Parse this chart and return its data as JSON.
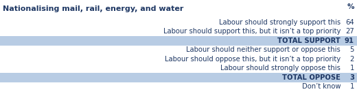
{
  "title": "Nationalising mail, rail, energy, and water",
  "percent_label": "%",
  "rows": [
    {
      "label": "Labour should strongly support this",
      "value": "64",
      "bold": false,
      "highlight": false
    },
    {
      "label": "Labour should support this, but it isn’t a top priority",
      "value": "27",
      "bold": false,
      "highlight": false
    },
    {
      "label": "TOTAL SUPPORT",
      "value": "91",
      "bold": true,
      "highlight": true
    },
    {
      "label": "Labour should neither support or oppose this",
      "value": "5",
      "bold": false,
      "highlight": false
    },
    {
      "label": "Labour should oppose this, but it isn’t a top priority",
      "value": "2",
      "bold": false,
      "highlight": false
    },
    {
      "label": "Labour should strongly oppose this",
      "value": "1",
      "bold": false,
      "highlight": false
    },
    {
      "label": "TOTAL OPPOSE",
      "value": "3",
      "bold": true,
      "highlight": true
    },
    {
      "label": "Don’t know",
      "value": "1",
      "bold": false,
      "highlight": false
    }
  ],
  "highlight_color": "#b8cce4",
  "background_color": "#ffffff",
  "font_color": "#1f3864",
  "title_color": "#1f3864",
  "label_fontsize": 7.2,
  "value_fontsize": 7.2,
  "title_fontsize": 8.0,
  "percent_fontsize": 7.5
}
